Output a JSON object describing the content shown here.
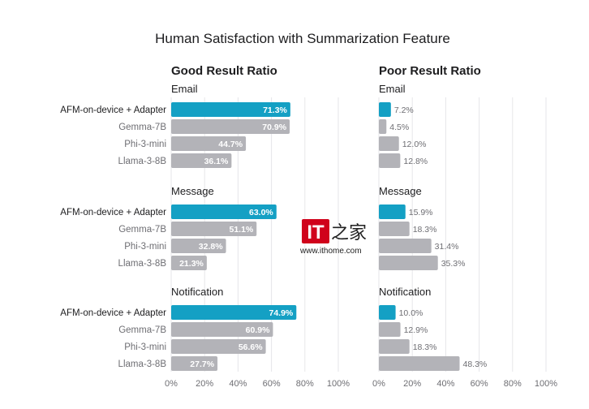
{
  "chart_data": {
    "type": "bar",
    "orientation": "horizontal",
    "title": "Human Satisfaction with Summarization Feature",
    "categories": [
      "AFM-on-device + Adapter",
      "Gemma-7B",
      "Phi-3-mini",
      "Llama-3-8B"
    ],
    "xlim": [
      0,
      100
    ],
    "x_ticks": [
      "0%",
      "20%",
      "40%",
      "60%",
      "80%",
      "100%"
    ],
    "grid": "vertical",
    "colors": {
      "highlight": "#14a0c4",
      "default": "#b3b3b8"
    },
    "panels": [
      {
        "heading": "Good Result Ratio",
        "groups": [
          {
            "name": "Email",
            "values": [
              71.3,
              70.9,
              44.7,
              36.1
            ],
            "labels": [
              "71.3%",
              "70.9%",
              "44.7%",
              "36.1%"
            ]
          },
          {
            "name": "Message",
            "values": [
              63.0,
              51.1,
              32.8,
              21.3
            ],
            "labels": [
              "63.0%",
              "51.1%",
              "32.8%",
              "21.3%"
            ]
          },
          {
            "name": "Notification",
            "values": [
              74.9,
              60.9,
              56.6,
              27.7
            ],
            "labels": [
              "74.9%",
              "60.9%",
              "56.6%",
              "27.7%"
            ]
          }
        ]
      },
      {
        "heading": "Poor Result Ratio",
        "groups": [
          {
            "name": "Email",
            "values": [
              7.2,
              4.5,
              12.0,
              12.8
            ],
            "labels": [
              "7.2%",
              "4.5%",
              "12.0%",
              "12.8%"
            ]
          },
          {
            "name": "Message",
            "values": [
              15.9,
              18.3,
              31.4,
              35.3
            ],
            "labels": [
              "15.9%",
              "18.3%",
              "31.4%",
              "35.3%"
            ]
          },
          {
            "name": "Notification",
            "values": [
              10.0,
              12.9,
              18.3,
              48.3
            ],
            "labels": [
              "10.0%",
              "12.9%",
              "18.3%",
              "48.3%"
            ]
          }
        ]
      }
    ]
  },
  "watermark": {
    "text": "www.ithome.com",
    "logo": "IT之家"
  }
}
